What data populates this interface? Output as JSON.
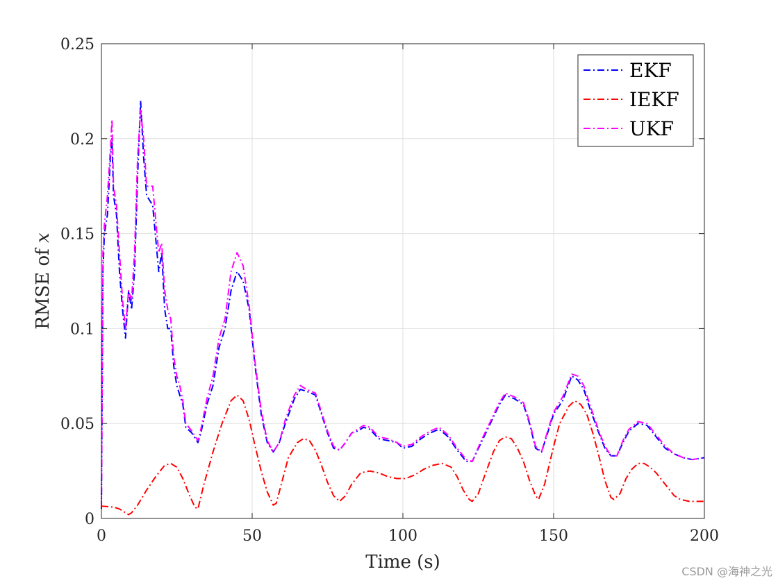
{
  "chart_data": {
    "type": "line",
    "xlabel": "Time (s)",
    "ylabel_prefix": "RMSE of ",
    "ylabel_var": "x",
    "xlim": [
      0,
      200
    ],
    "ylim": [
      0,
      0.25
    ],
    "xticks": [
      0,
      50,
      100,
      150,
      200
    ],
    "yticks": [
      0,
      0.05,
      0.1,
      0.15,
      0.2,
      0.25
    ],
    "ytick_labels": [
      "0",
      "0.05",
      "0.1",
      "0.15",
      "0.2",
      "0.25"
    ],
    "grid": true,
    "legend_position": "top-right",
    "series": [
      {
        "name": "EKF",
        "color": "#0000ff",
        "dash": "dashdot",
        "points": [
          [
            0,
            0.005
          ],
          [
            0.5,
            0.13
          ],
          [
            1,
            0.15
          ],
          [
            2,
            0.16
          ],
          [
            3,
            0.19
          ],
          [
            3.5,
            0.2
          ],
          [
            4,
            0.17
          ],
          [
            5,
            0.16
          ],
          [
            6,
            0.13
          ],
          [
            7,
            0.11
          ],
          [
            8,
            0.095
          ],
          [
            9,
            0.12
          ],
          [
            10,
            0.11
          ],
          [
            11,
            0.13
          ],
          [
            12,
            0.18
          ],
          [
            13,
            0.22
          ],
          [
            14,
            0.19
          ],
          [
            15,
            0.17
          ],
          [
            17,
            0.165
          ],
          [
            19,
            0.13
          ],
          [
            20,
            0.14
          ],
          [
            21,
            0.11
          ],
          [
            22,
            0.1
          ],
          [
            23,
            0.1
          ],
          [
            24,
            0.08
          ],
          [
            25,
            0.07
          ],
          [
            26,
            0.065
          ],
          [
            27,
            0.06
          ],
          [
            28,
            0.048
          ],
          [
            30,
            0.045
          ],
          [
            32,
            0.04
          ],
          [
            33,
            0.045
          ],
          [
            35,
            0.06
          ],
          [
            37,
            0.07
          ],
          [
            39,
            0.09
          ],
          [
            41,
            0.1
          ],
          [
            43,
            0.12
          ],
          [
            45,
            0.13
          ],
          [
            47,
            0.125
          ],
          [
            49,
            0.11
          ],
          [
            51,
            0.08
          ],
          [
            53,
            0.055
          ],
          [
            55,
            0.04
          ],
          [
            57,
            0.035
          ],
          [
            59,
            0.04
          ],
          [
            61,
            0.05
          ],
          [
            64,
            0.063
          ],
          [
            66,
            0.068
          ],
          [
            68,
            0.067
          ],
          [
            71,
            0.065
          ],
          [
            73,
            0.055
          ],
          [
            75,
            0.045
          ],
          [
            77,
            0.037
          ],
          [
            79,
            0.036
          ],
          [
            81,
            0.04
          ],
          [
            83,
            0.045
          ],
          [
            85,
            0.046
          ],
          [
            87,
            0.048
          ],
          [
            89,
            0.047
          ],
          [
            92,
            0.042
          ],
          [
            95,
            0.041
          ],
          [
            98,
            0.04
          ],
          [
            100,
            0.037
          ],
          [
            103,
            0.038
          ],
          [
            106,
            0.042
          ],
          [
            109,
            0.045
          ],
          [
            112,
            0.047
          ],
          [
            115,
            0.043
          ],
          [
            118,
            0.036
          ],
          [
            121,
            0.03
          ],
          [
            123,
            0.03
          ],
          [
            126,
            0.04
          ],
          [
            129,
            0.05
          ],
          [
            132,
            0.06
          ],
          [
            134,
            0.065
          ],
          [
            137,
            0.063
          ],
          [
            140,
            0.06
          ],
          [
            142,
            0.05
          ],
          [
            144,
            0.037
          ],
          [
            146,
            0.035
          ],
          [
            148,
            0.045
          ],
          [
            150,
            0.055
          ],
          [
            153,
            0.062
          ],
          [
            156,
            0.075
          ],
          [
            158,
            0.073
          ],
          [
            160,
            0.068
          ],
          [
            162,
            0.058
          ],
          [
            165,
            0.045
          ],
          [
            167,
            0.037
          ],
          [
            169,
            0.033
          ],
          [
            171,
            0.033
          ],
          [
            173,
            0.04
          ],
          [
            175,
            0.046
          ],
          [
            178,
            0.05
          ],
          [
            181,
            0.049
          ],
          [
            184,
            0.043
          ],
          [
            187,
            0.037
          ],
          [
            190,
            0.034
          ],
          [
            193,
            0.032
          ],
          [
            196,
            0.031
          ],
          [
            200,
            0.032
          ]
        ]
      },
      {
        "name": "IEKF",
        "color": "#ff0000",
        "dash": "dashdot",
        "points": [
          [
            0,
            0.0065
          ],
          [
            4,
            0.006
          ],
          [
            6,
            0.005
          ],
          [
            8,
            0.003
          ],
          [
            9,
            0.002
          ],
          [
            10,
            0.003
          ],
          [
            12,
            0.007
          ],
          [
            15,
            0.015
          ],
          [
            18,
            0.022
          ],
          [
            21,
            0.028
          ],
          [
            23,
            0.029
          ],
          [
            25,
            0.027
          ],
          [
            27,
            0.021
          ],
          [
            29,
            0.013
          ],
          [
            31,
            0.006
          ],
          [
            32,
            0.005
          ],
          [
            34,
            0.018
          ],
          [
            37,
            0.035
          ],
          [
            40,
            0.05
          ],
          [
            43,
            0.062
          ],
          [
            45,
            0.065
          ],
          [
            47,
            0.062
          ],
          [
            49,
            0.052
          ],
          [
            51,
            0.038
          ],
          [
            53,
            0.025
          ],
          [
            55,
            0.014
          ],
          [
            57,
            0.007
          ],
          [
            58,
            0.008
          ],
          [
            60,
            0.02
          ],
          [
            62,
            0.032
          ],
          [
            65,
            0.04
          ],
          [
            67,
            0.042
          ],
          [
            69,
            0.041
          ],
          [
            71,
            0.036
          ],
          [
            73,
            0.028
          ],
          [
            75,
            0.019
          ],
          [
            77,
            0.012
          ],
          [
            79,
            0.009
          ],
          [
            81,
            0.012
          ],
          [
            83,
            0.018
          ],
          [
            86,
            0.024
          ],
          [
            89,
            0.025
          ],
          [
            92,
            0.024
          ],
          [
            95,
            0.022
          ],
          [
            98,
            0.021
          ],
          [
            101,
            0.021
          ],
          [
            104,
            0.023
          ],
          [
            107,
            0.026
          ],
          [
            110,
            0.028
          ],
          [
            113,
            0.029
          ],
          [
            116,
            0.027
          ],
          [
            118,
            0.022
          ],
          [
            120,
            0.015
          ],
          [
            122,
            0.01
          ],
          [
            123,
            0.009
          ],
          [
            125,
            0.013
          ],
          [
            127,
            0.022
          ],
          [
            130,
            0.035
          ],
          [
            132,
            0.041
          ],
          [
            134,
            0.043
          ],
          [
            136,
            0.042
          ],
          [
            138,
            0.037
          ],
          [
            140,
            0.03
          ],
          [
            142,
            0.02
          ],
          [
            144,
            0.012
          ],
          [
            145,
            0.01
          ],
          [
            147,
            0.018
          ],
          [
            150,
            0.038
          ],
          [
            152,
            0.05
          ],
          [
            155,
            0.059
          ],
          [
            157,
            0.062
          ],
          [
            159,
            0.06
          ],
          [
            161,
            0.055
          ],
          [
            163,
            0.045
          ],
          [
            165,
            0.033
          ],
          [
            167,
            0.02
          ],
          [
            169,
            0.011
          ],
          [
            170,
            0.01
          ],
          [
            172,
            0.013
          ],
          [
            174,
            0.021
          ],
          [
            176,
            0.026
          ],
          [
            178,
            0.029
          ],
          [
            180,
            0.029
          ],
          [
            182,
            0.027
          ],
          [
            184,
            0.024
          ],
          [
            186,
            0.02
          ],
          [
            188,
            0.016
          ],
          [
            190,
            0.012
          ],
          [
            192,
            0.01
          ],
          [
            195,
            0.009
          ],
          [
            198,
            0.009
          ],
          [
            200,
            0.009
          ]
        ]
      },
      {
        "name": "UKF",
        "color": "#ff00ff",
        "dash": "dashdot",
        "points": [
          [
            0,
            0.006
          ],
          [
            0.5,
            0.14
          ],
          [
            1,
            0.155
          ],
          [
            2,
            0.17
          ],
          [
            3,
            0.195
          ],
          [
            3.5,
            0.21
          ],
          [
            4,
            0.175
          ],
          [
            5,
            0.165
          ],
          [
            6,
            0.14
          ],
          [
            7,
            0.115
          ],
          [
            8,
            0.1
          ],
          [
            9,
            0.12
          ],
          [
            10,
            0.115
          ],
          [
            11,
            0.14
          ],
          [
            12,
            0.19
          ],
          [
            13,
            0.215
          ],
          [
            14,
            0.2
          ],
          [
            15,
            0.175
          ],
          [
            17,
            0.175
          ],
          [
            19,
            0.14
          ],
          [
            20,
            0.145
          ],
          [
            21,
            0.12
          ],
          [
            22,
            0.11
          ],
          [
            23,
            0.105
          ],
          [
            24,
            0.085
          ],
          [
            25,
            0.075
          ],
          [
            26,
            0.07
          ],
          [
            27,
            0.062
          ],
          [
            28,
            0.05
          ],
          [
            30,
            0.046
          ],
          [
            32,
            0.041
          ],
          [
            33,
            0.047
          ],
          [
            35,
            0.063
          ],
          [
            37,
            0.075
          ],
          [
            39,
            0.095
          ],
          [
            41,
            0.105
          ],
          [
            43,
            0.13
          ],
          [
            45,
            0.14
          ],
          [
            47,
            0.133
          ],
          [
            49,
            0.112
          ],
          [
            51,
            0.082
          ],
          [
            53,
            0.057
          ],
          [
            55,
            0.041
          ],
          [
            57,
            0.035
          ],
          [
            59,
            0.04
          ],
          [
            61,
            0.052
          ],
          [
            64,
            0.065
          ],
          [
            66,
            0.07
          ],
          [
            68,
            0.068
          ],
          [
            71,
            0.066
          ],
          [
            73,
            0.056
          ],
          [
            75,
            0.046
          ],
          [
            77,
            0.038
          ],
          [
            79,
            0.036
          ],
          [
            81,
            0.04
          ],
          [
            83,
            0.045
          ],
          [
            85,
            0.047
          ],
          [
            87,
            0.049
          ],
          [
            89,
            0.048
          ],
          [
            92,
            0.043
          ],
          [
            95,
            0.042
          ],
          [
            98,
            0.04
          ],
          [
            100,
            0.038
          ],
          [
            103,
            0.039
          ],
          [
            106,
            0.043
          ],
          [
            109,
            0.046
          ],
          [
            112,
            0.048
          ],
          [
            115,
            0.044
          ],
          [
            118,
            0.037
          ],
          [
            121,
            0.031
          ],
          [
            123,
            0.03
          ],
          [
            126,
            0.041
          ],
          [
            129,
            0.051
          ],
          [
            132,
            0.061
          ],
          [
            134,
            0.066
          ],
          [
            137,
            0.064
          ],
          [
            140,
            0.061
          ],
          [
            142,
            0.051
          ],
          [
            144,
            0.038
          ],
          [
            146,
            0.035
          ],
          [
            148,
            0.046
          ],
          [
            150,
            0.056
          ],
          [
            153,
            0.064
          ],
          [
            156,
            0.076
          ],
          [
            158,
            0.075
          ],
          [
            160,
            0.07
          ],
          [
            162,
            0.06
          ],
          [
            165,
            0.046
          ],
          [
            167,
            0.038
          ],
          [
            169,
            0.033
          ],
          [
            171,
            0.033
          ],
          [
            173,
            0.041
          ],
          [
            175,
            0.047
          ],
          [
            178,
            0.051
          ],
          [
            181,
            0.05
          ],
          [
            184,
            0.044
          ],
          [
            187,
            0.038
          ],
          [
            190,
            0.034
          ],
          [
            193,
            0.032
          ],
          [
            196,
            0.031
          ],
          [
            200,
            0.032
          ]
        ]
      }
    ]
  },
  "watermark": "CSDN @海神之光"
}
